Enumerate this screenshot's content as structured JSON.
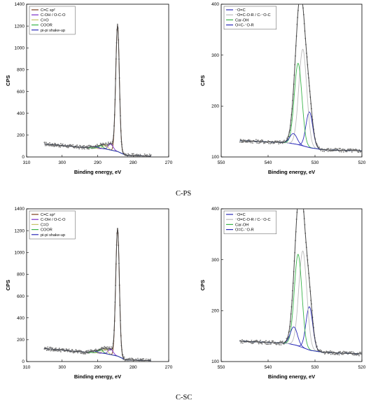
{
  "captions": {
    "top": "C-PS",
    "bottom": "C-SC"
  },
  "chart_data": [
    {
      "id": "c1s-ps",
      "type": "line",
      "xlabel": "Binding energy, eV",
      "ylabel": "CPS",
      "xlim": [
        310,
        270
      ],
      "ylim": [
        0,
        1400
      ],
      "x_ticks": [
        310,
        300,
        290,
        280,
        270
      ],
      "y_ticks": [
        0,
        200,
        400,
        600,
        800,
        1000,
        1200,
        1400
      ],
      "legend": {
        "position": "top-left",
        "entries": [
          {
            "label": "C=C sp²",
            "color": "#7a3b1a"
          },
          {
            "label": "C-OH / O-C-O",
            "color": "#7a2cc7"
          },
          {
            "label": "C=O",
            "color": "#c7c26a"
          },
          {
            "label": "COOR",
            "color": "#39b44a"
          },
          {
            "label": "pi-pi shake-up",
            "color": "#2a2ab8"
          }
        ]
      },
      "series": [
        {
          "role": "fitted-components",
          "components": [
            {
              "color": "#7a3b1a",
              "center": 284.4,
              "height": 1160,
              "fwhm": 1.2
            },
            {
              "color": "#7a2cc7",
              "center": 286.3,
              "height": 55,
              "fwhm": 1.6
            },
            {
              "color": "#c7c26a",
              "center": 287.8,
              "height": 35,
              "fwhm": 1.6
            },
            {
              "color": "#39b44a",
              "center": 289.2,
              "height": 25,
              "fwhm": 1.6
            },
            {
              "color": "#2a2ab8",
              "center": 291.0,
              "height": 15,
              "fwhm": 2.2
            }
          ]
        },
        {
          "role": "background",
          "color": "#2a2ab8",
          "x": [
            305,
            295,
            288,
            284.4,
            282,
            275
          ],
          "y": [
            120,
            90,
            75,
            50,
            15,
            8
          ]
        },
        {
          "role": "envelope",
          "color": "#444444"
        },
        {
          "role": "raw-data",
          "color": "#777777",
          "x_range": [
            305,
            275
          ]
        }
      ]
    },
    {
      "id": "o1s-ps",
      "type": "line",
      "xlabel": "Binding energy, eV",
      "ylabel": "CPS",
      "xlim": [
        550,
        520
      ],
      "ylim": [
        100,
        400
      ],
      "x_ticks": [
        550,
        540,
        530,
        520
      ],
      "y_ticks": [
        100,
        200,
        300,
        400
      ],
      "legend": {
        "position": "top-left",
        "entries": [
          {
            "label": "⁻O=C",
            "color": "#2a2ab8"
          },
          {
            "label": "⁻O=C-O-R / C-⁻O-C",
            "color": "#bbbbbb"
          },
          {
            "label": "Car-OH",
            "color": "#39b44a"
          },
          {
            "label": "O=C-⁻O-R",
            "color": "#2a2ab8"
          }
        ]
      },
      "series": [
        {
          "role": "fitted-components",
          "components": [
            {
              "color": "#2a2ab8",
              "center": 531.2,
              "height": 70,
              "fwhm": 1.7
            },
            {
              "color": "#bbbbbb",
              "center": 532.6,
              "height": 190,
              "fwhm": 2.0
            },
            {
              "color": "#39b44a",
              "center": 533.6,
              "height": 160,
              "fwhm": 1.9
            },
            {
              "color": "#2a2ab8",
              "center": 534.6,
              "height": 20,
              "fwhm": 1.8
            }
          ]
        },
        {
          "role": "background",
          "color": "#2a2ab8",
          "x": [
            546,
            536,
            534,
            531,
            528,
            520
          ],
          "y": [
            132,
            128,
            125,
            118,
            114,
            112
          ]
        },
        {
          "role": "envelope",
          "color": "#444444"
        },
        {
          "role": "raw-data",
          "color": "#777777",
          "x_range": [
            546,
            520
          ]
        }
      ]
    },
    {
      "id": "c1s-sc",
      "type": "line",
      "xlabel": "Binding energy, eV",
      "ylabel": "CPS",
      "xlim": [
        310,
        270
      ],
      "ylim": [
        0,
        1400
      ],
      "x_ticks": [
        310,
        300,
        290,
        280,
        270
      ],
      "y_ticks": [
        0,
        200,
        400,
        600,
        800,
        1000,
        1200,
        1400
      ],
      "legend": {
        "position": "top-left",
        "entries": [
          {
            "label": "C=C sp²",
            "color": "#7a3b1a"
          },
          {
            "label": "C-OH / O-C-O",
            "color": "#7a2cc7"
          },
          {
            "label": "C=O",
            "color": "#c7c26a"
          },
          {
            "label": "COOR",
            "color": "#39b44a"
          },
          {
            "label": "pi-pi shake-up",
            "color": "#2a2ab8"
          }
        ]
      },
      "series": [
        {
          "role": "fitted-components",
          "components": [
            {
              "color": "#7a3b1a",
              "center": 284.4,
              "height": 1170,
              "fwhm": 1.2
            },
            {
              "color": "#7a2cc7",
              "center": 286.3,
              "height": 50,
              "fwhm": 1.6
            },
            {
              "color": "#c7c26a",
              "center": 287.8,
              "height": 40,
              "fwhm": 1.6
            },
            {
              "color": "#39b44a",
              "center": 289.2,
              "height": 30,
              "fwhm": 1.6
            },
            {
              "color": "#2a2ab8",
              "center": 291.0,
              "height": 15,
              "fwhm": 2.2
            }
          ]
        },
        {
          "role": "background",
          "color": "#2a2ab8",
          "x": [
            305,
            295,
            288,
            284.4,
            282,
            275
          ],
          "y": [
            120,
            90,
            75,
            50,
            15,
            8
          ]
        },
        {
          "role": "envelope",
          "color": "#444444"
        },
        {
          "role": "raw-data",
          "color": "#777777",
          "x_range": [
            305,
            275
          ]
        }
      ]
    },
    {
      "id": "o1s-sc",
      "type": "line",
      "xlabel": "Binding energy, eV",
      "ylabel": "CPS",
      "xlim": [
        550,
        520
      ],
      "ylim": [
        100,
        400
      ],
      "x_ticks": [
        550,
        540,
        530,
        520
      ],
      "y_ticks": [
        100,
        200,
        300,
        400
      ],
      "legend": {
        "position": "top-left",
        "entries": [
          {
            "label": "⁻O=C",
            "color": "#2a2ab8"
          },
          {
            "label": "⁻O=C-O-R / C-⁻O-C",
            "color": "#bbbbbb"
          },
          {
            "label": "Car-OH",
            "color": "#39b44a"
          },
          {
            "label": "O=C-⁻O-R",
            "color": "#2a2ab8"
          }
        ]
      },
      "series": [
        {
          "role": "fitted-components",
          "components": [
            {
              "color": "#2a2ab8",
              "center": 531.2,
              "height": 85,
              "fwhm": 1.7
            },
            {
              "color": "#bbbbbb",
              "center": 532.6,
              "height": 190,
              "fwhm": 2.0
            },
            {
              "color": "#39b44a",
              "center": 533.6,
              "height": 180,
              "fwhm": 1.9
            },
            {
              "color": "#2a2ab8",
              "center": 534.5,
              "height": 35,
              "fwhm": 1.8
            }
          ]
        },
        {
          "role": "background",
          "color": "#2a2ab8",
          "x": [
            546,
            536,
            534,
            531,
            528,
            520
          ],
          "y": [
            140,
            136,
            132,
            122,
            118,
            115
          ]
        },
        {
          "role": "envelope",
          "color": "#444444"
        },
        {
          "role": "raw-data",
          "color": "#777777",
          "x_range": [
            546,
            520
          ]
        }
      ]
    }
  ]
}
